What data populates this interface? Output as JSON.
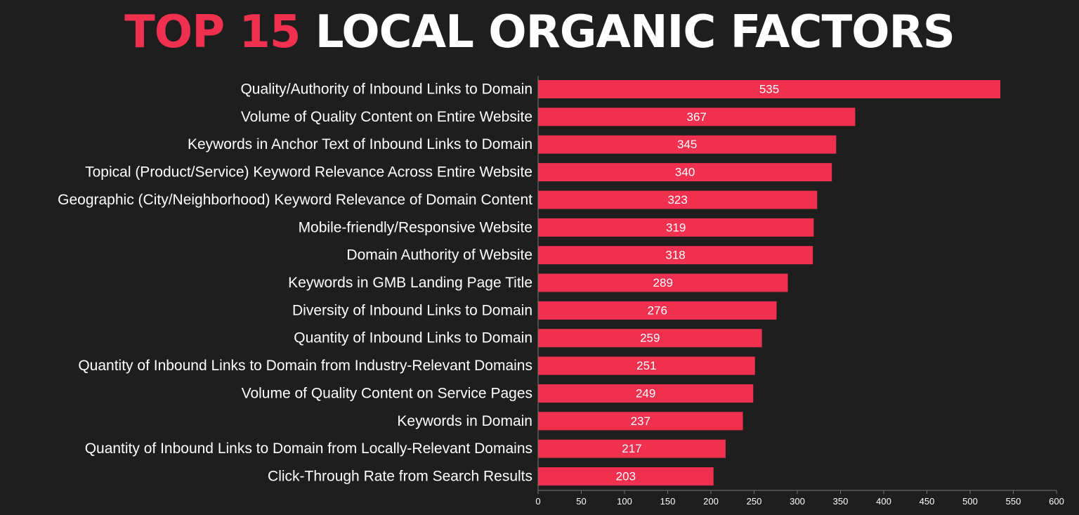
{
  "title": {
    "highlight": "TOP 15",
    "rest": "LOCAL ORGANIC FACTORS"
  },
  "colors": {
    "background": "#1e1e1e",
    "bar": "#f0304f",
    "title_highlight": "#f0304f",
    "text": "#ffffff",
    "axis": "#777777"
  },
  "chart_data": {
    "type": "bar",
    "orientation": "horizontal",
    "categories": [
      "Quality/Authority of Inbound Links to Domain",
      "Volume of Quality Content on Entire Website",
      "Keywords in Anchor Text of Inbound Links to Domain",
      "Topical (Product/Service) Keyword Relevance Across Entire Website",
      "Geographic (City/Neighborhood) Keyword Relevance of Domain Content",
      "Mobile-friendly/Responsive Website",
      "Domain Authority of Website",
      "Keywords in GMB Landing Page Title",
      "Diversity of Inbound Links to Domain",
      "Quantity of Inbound Links to Domain",
      "Quantity of Inbound Links to Domain from Industry-Relevant Domains",
      "Volume of Quality Content on Service Pages",
      "Keywords in Domain",
      "Quantity of Inbound Links to Domain from Locally-Relevant Domains",
      "Click-Through Rate from Search Results"
    ],
    "values": [
      535,
      367,
      345,
      340,
      323,
      319,
      318,
      289,
      276,
      259,
      251,
      249,
      237,
      217,
      203
    ],
    "xlim": [
      0,
      600
    ],
    "xticks": [
      0,
      50,
      100,
      150,
      200,
      250,
      300,
      350,
      400,
      450,
      500,
      550,
      600
    ],
    "grid": false,
    "legend": "none",
    "data_labels": "inside-center"
  }
}
